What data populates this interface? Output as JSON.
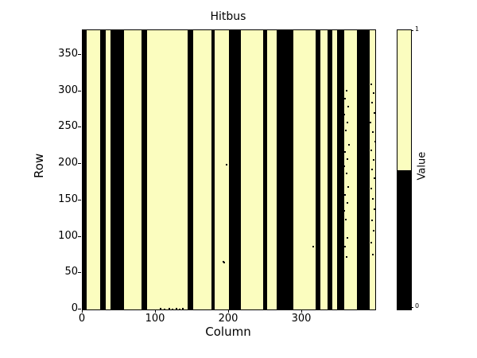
{
  "chart_data": {
    "type": "heatmap",
    "title": "Hitbus",
    "xlabel": "Column",
    "ylabel": "Row",
    "xlim": [
      0,
      400
    ],
    "ylim": [
      0,
      384
    ],
    "x_ticks": [
      0,
      100,
      200,
      300
    ],
    "y_ticks": [
      0,
      50,
      100,
      150,
      200,
      250,
      300,
      350
    ],
    "grid": false,
    "colors": {
      "value_low": "#000000",
      "value_high": "#fbfdbf",
      "frame": "#000000",
      "background": "#ffffff"
    },
    "colorbar": {
      "label": "Value",
      "tick_labels": [
        "1",
        "0"
      ],
      "boundary_fraction": 0.5
    },
    "black_stripes_col_ranges": [
      [
        0,
        5
      ],
      [
        24,
        32
      ],
      [
        38,
        56
      ],
      [
        80,
        88
      ],
      [
        143,
        151
      ],
      [
        176,
        180
      ],
      [
        200,
        216
      ],
      [
        247,
        252
      ],
      [
        265,
        288
      ],
      [
        319,
        325
      ],
      [
        335,
        341
      ],
      [
        348,
        358
      ],
      [
        375,
        392
      ]
    ],
    "noise_dots_col_row": [
      [
        106,
        1
      ],
      [
        112,
        0
      ],
      [
        118,
        1
      ],
      [
        123,
        0
      ],
      [
        128,
        1
      ],
      [
        133,
        0
      ],
      [
        137,
        1
      ],
      [
        192,
        66
      ],
      [
        194,
        65
      ],
      [
        197,
        199
      ],
      [
        315,
        86
      ],
      [
        357,
        312
      ],
      [
        361,
        301
      ],
      [
        359,
        290
      ],
      [
        363,
        279
      ],
      [
        358,
        268
      ],
      [
        362,
        257
      ],
      [
        360,
        246
      ],
      [
        357,
        236
      ],
      [
        364,
        226
      ],
      [
        356,
        223
      ],
      [
        359,
        217
      ],
      [
        362,
        207
      ],
      [
        358,
        197
      ],
      [
        361,
        187
      ],
      [
        356,
        177
      ],
      [
        363,
        168
      ],
      [
        359,
        157
      ],
      [
        362,
        147
      ],
      [
        358,
        136
      ],
      [
        360,
        124
      ],
      [
        357,
        112
      ],
      [
        362,
        99
      ],
      [
        359,
        86
      ],
      [
        361,
        72
      ],
      [
        395,
        310
      ],
      [
        398,
        298
      ],
      [
        396,
        284
      ],
      [
        399,
        270
      ],
      [
        394,
        257
      ],
      [
        397,
        244
      ],
      [
        400,
        231
      ],
      [
        395,
        219
      ],
      [
        398,
        206
      ],
      [
        396,
        193
      ],
      [
        399,
        180
      ],
      [
        395,
        166
      ],
      [
        397,
        152
      ],
      [
        399,
        138
      ],
      [
        396,
        123
      ],
      [
        398,
        108
      ],
      [
        395,
        92
      ],
      [
        397,
        75
      ]
    ]
  }
}
